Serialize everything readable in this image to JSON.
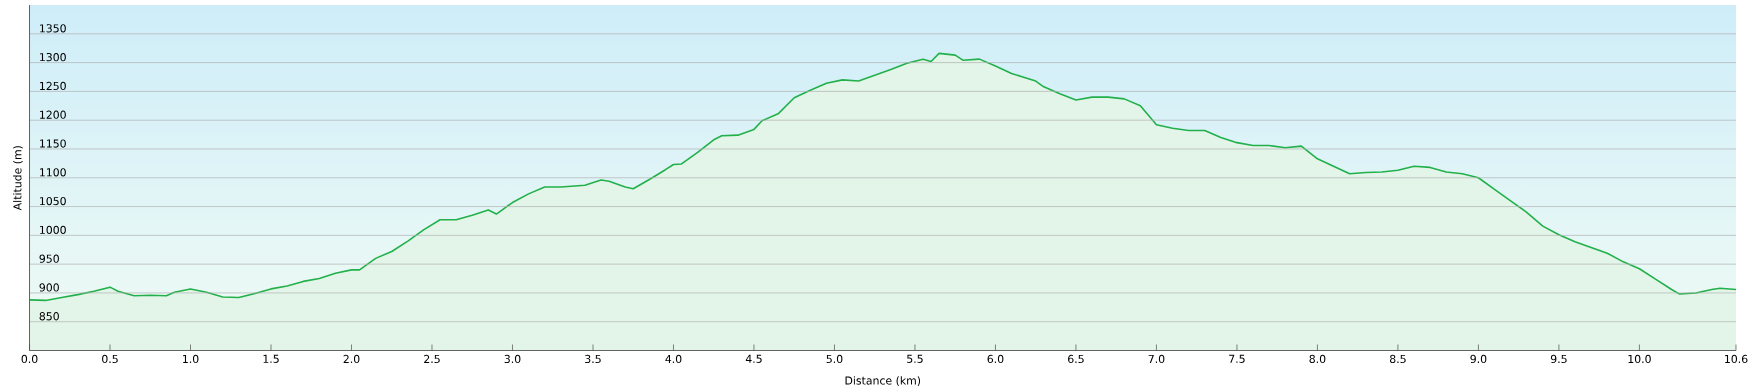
{
  "chart_data": {
    "type": "area",
    "xlabel": "Distance  (km)",
    "ylabel": "Altitude (m)",
    "color": "#22b04b",
    "grid": "y",
    "xlim": [
      0,
      10.6
    ],
    "ylim": [
      800,
      1400
    ],
    "xticks": [
      {
        "value": 0,
        "label": "0.0"
      },
      {
        "value": 0.5,
        "label": "0.5"
      },
      {
        "value": 1,
        "label": "1.0"
      },
      {
        "value": 1.5,
        "label": "1.5"
      },
      {
        "value": 2,
        "label": "2.0"
      },
      {
        "value": 2.5,
        "label": "2.5"
      },
      {
        "value": 3,
        "label": "3.0"
      },
      {
        "value": 3.5,
        "label": "3.5"
      },
      {
        "value": 4,
        "label": "4.0"
      },
      {
        "value": 4.5,
        "label": "4.5"
      },
      {
        "value": 5,
        "label": "5.0"
      },
      {
        "value": 5.5,
        "label": "5.5"
      },
      {
        "value": 6,
        "label": "6.0"
      },
      {
        "value": 6.5,
        "label": "6.5"
      },
      {
        "value": 7,
        "label": "7.0"
      },
      {
        "value": 7.5,
        "label": "7.5"
      },
      {
        "value": 8,
        "label": "8.0"
      },
      {
        "value": 8.5,
        "label": "8.5"
      },
      {
        "value": 9,
        "label": "9.0"
      },
      {
        "value": 9.5,
        "label": "9.5"
      },
      {
        "value": 10,
        "label": "10.0"
      },
      {
        "value": 10.6,
        "label": "10.6"
      }
    ],
    "yticks": [
      850,
      900,
      950,
      1000,
      1050,
      1100,
      1150,
      1200,
      1250,
      1300,
      1350
    ],
    "x": [
      0,
      0.1,
      0.2,
      0.3,
      0.4,
      0.5,
      0.55,
      0.65,
      0.75,
      0.85,
      0.9,
      1.0,
      1.1,
      1.2,
      1.3,
      1.4,
      1.5,
      1.6,
      1.7,
      1.8,
      1.9,
      2.0,
      2.05,
      2.15,
      2.25,
      2.35,
      2.45,
      2.55,
      2.65,
      2.75,
      2.85,
      2.9,
      3.0,
      3.1,
      3.2,
      3.3,
      3.45,
      3.55,
      3.6,
      3.7,
      3.75,
      3.85,
      3.95,
      4.0,
      4.05,
      4.15,
      4.25,
      4.3,
      4.4,
      4.5,
      4.55,
      4.65,
      4.75,
      4.85,
      4.95,
      5.05,
      5.15,
      5.25,
      5.35,
      5.45,
      5.55,
      5.6,
      5.65,
      5.75,
      5.8,
      5.9,
      6.0,
      6.1,
      6.25,
      6.3,
      6.4,
      6.5,
      6.6,
      6.7,
      6.8,
      6.9,
      7.0,
      7.1,
      7.2,
      7.3,
      7.4,
      7.5,
      7.6,
      7.7,
      7.8,
      7.9,
      8.0,
      8.1,
      8.2,
      8.3,
      8.4,
      8.5,
      8.6,
      8.7,
      8.8,
      8.9,
      9.0,
      9.1,
      9.2,
      9.3,
      9.4,
      9.5,
      9.6,
      9.7,
      9.8,
      9.9,
      10.0,
      10.1,
      10.2,
      10.25,
      10.35,
      10.45,
      10.5,
      10.6
    ],
    "values": [
      888,
      887,
      892,
      897,
      903,
      910,
      903,
      895,
      896,
      895,
      901,
      907,
      901,
      893,
      892,
      899,
      907,
      912,
      920,
      925,
      934,
      940,
      940,
      960,
      972,
      990,
      1010,
      1027,
      1027,
      1035,
      1044,
      1037,
      1057,
      1072,
      1084,
      1084,
      1087,
      1096,
      1094,
      1084,
      1081,
      1097,
      1114,
      1123,
      1124,
      1144,
      1166,
      1173,
      1174,
      1184,
      1199,
      1211,
      1239,
      1252,
      1264,
      1270,
      1268,
      1278,
      1288,
      1299,
      1306,
      1302,
      1316,
      1313,
      1304,
      1306,
      1294,
      1281,
      1268,
      1258,
      1246,
      1235,
      1240,
      1240,
      1237,
      1225,
      1192,
      1186,
      1182,
      1182,
      1170,
      1161,
      1156,
      1156,
      1152,
      1155,
      1133,
      1120,
      1107,
      1109,
      1110,
      1113,
      1120,
      1118,
      1110,
      1107,
      1100,
      1080,
      1060,
      1040,
      1016,
      1001,
      989,
      979,
      969,
      954,
      942,
      924,
      906,
      898,
      900,
      906,
      908,
      906
    ]
  }
}
